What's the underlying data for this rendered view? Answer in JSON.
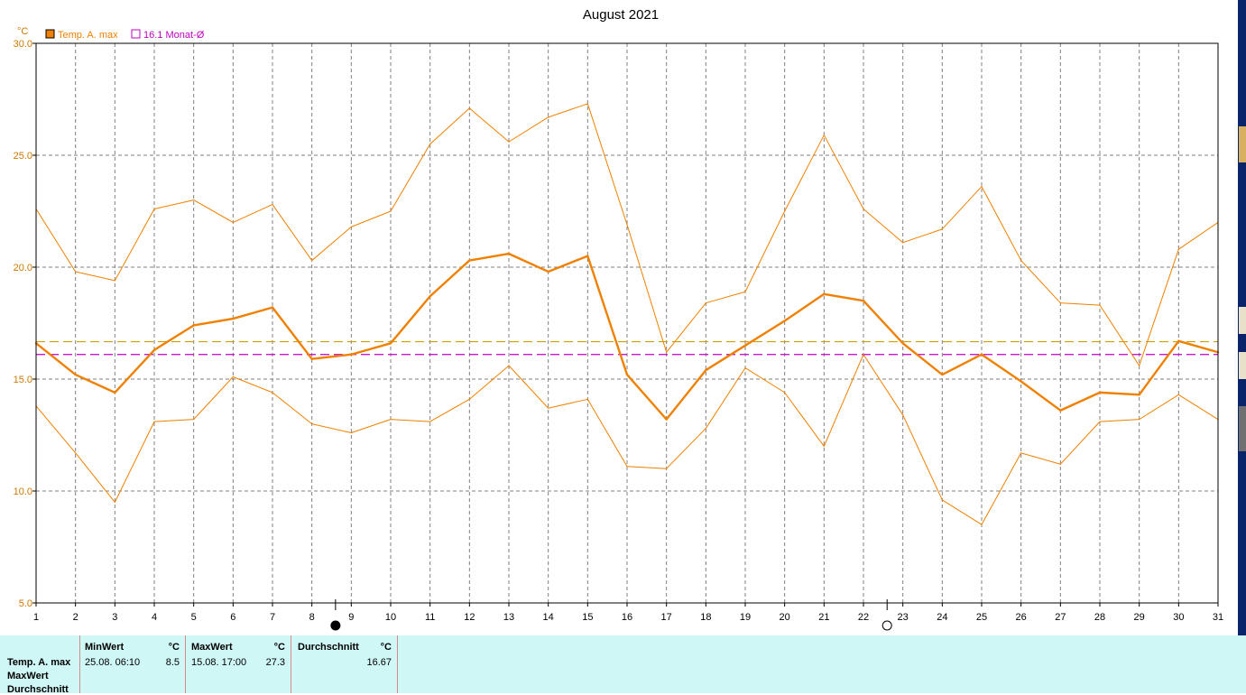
{
  "chart_data": {
    "type": "line",
    "title": "August 2021",
    "y_unit": "°C",
    "x": [
      1,
      2,
      3,
      4,
      5,
      6,
      7,
      8,
      9,
      10,
      11,
      12,
      13,
      14,
      15,
      16,
      17,
      18,
      19,
      20,
      21,
      22,
      23,
      24,
      25,
      26,
      27,
      28,
      29,
      30,
      31
    ],
    "x_tick_labels": [
      "1",
      "2",
      "3",
      "4",
      "5",
      "6",
      "7",
      "8",
      "9",
      "10",
      "11",
      "12",
      "13",
      "14",
      "15",
      "16",
      "17",
      "18",
      "19",
      "20",
      "21",
      "22",
      "23",
      "24",
      "25",
      "26",
      "27",
      "28",
      "29",
      "30",
      "31"
    ],
    "y_tick_labels": [
      "30.0",
      "25.0",
      "20.0",
      "15.0",
      "10.0",
      "5.0"
    ],
    "ylim": [
      5,
      30
    ],
    "grid": true,
    "legend_position": "top-left",
    "series": [
      {
        "name": "Temp. A. max",
        "role": "mean",
        "color": "#f08000",
        "values": [
          16.6,
          15.2,
          14.4,
          16.3,
          17.4,
          17.7,
          18.2,
          15.9,
          16.1,
          16.6,
          18.7,
          20.3,
          20.6,
          19.8,
          20.5,
          15.2,
          13.2,
          15.4,
          16.5,
          17.6,
          18.8,
          18.5,
          16.6,
          15.2,
          16.1,
          14.9,
          13.6,
          14.4,
          14.3,
          16.7,
          16.2
        ]
      },
      {
        "name": "",
        "role": "daily-max",
        "color": "#f08000",
        "values": [
          22.6,
          19.8,
          19.4,
          22.6,
          23.0,
          22.0,
          22.8,
          20.3,
          21.8,
          22.5,
          25.5,
          27.1,
          25.6,
          26.7,
          27.3,
          21.9,
          16.2,
          18.4,
          18.9,
          22.5,
          25.9,
          22.6,
          21.1,
          21.7,
          23.6,
          20.3,
          18.4,
          18.3,
          15.6,
          20.8,
          22.0
        ]
      },
      {
        "name": "",
        "role": "daily-min",
        "color": "#f08000",
        "values": [
          13.8,
          11.7,
          9.5,
          13.1,
          13.2,
          15.1,
          14.4,
          13.0,
          12.6,
          13.2,
          13.1,
          14.1,
          15.6,
          13.7,
          14.1,
          11.1,
          11.0,
          12.8,
          15.5,
          14.4,
          12.0,
          16.1,
          13.4,
          9.6,
          8.5,
          11.7,
          11.2,
          13.1,
          13.2,
          14.3,
          13.2
        ]
      }
    ],
    "reference_lines": [
      {
        "name": "16.1 Monat-Ø",
        "value": 16.1,
        "color": "#c000c0",
        "style": "dashed"
      },
      {
        "name": "",
        "value": 16.67,
        "color": "#d0a000",
        "style": "dashed"
      }
    ],
    "moon_phases": [
      {
        "day": 8.6,
        "phase": "new"
      },
      {
        "day": 22.6,
        "phase": "full"
      }
    ]
  },
  "legend": {
    "items": [
      {
        "label": "Temp. A. max",
        "color": "#f08000",
        "filled": true
      },
      {
        "label": "16.1 Monat-Ø",
        "color": "#c000c0",
        "filled": false
      }
    ]
  },
  "stats": {
    "row_labels": [
      "Temp. A. max",
      "MaxWert",
      "Durchschnitt"
    ],
    "min": {
      "header": "MinWert",
      "unit": "°C",
      "time": "25.08.  06:10",
      "value": "8.5"
    },
    "max": {
      "header": "MaxWert",
      "unit": "°C",
      "time": "15.08.  17:00",
      "value": "27.3"
    },
    "avg": {
      "header": "Durchschnitt",
      "unit": "°C",
      "value": "16.67"
    }
  }
}
